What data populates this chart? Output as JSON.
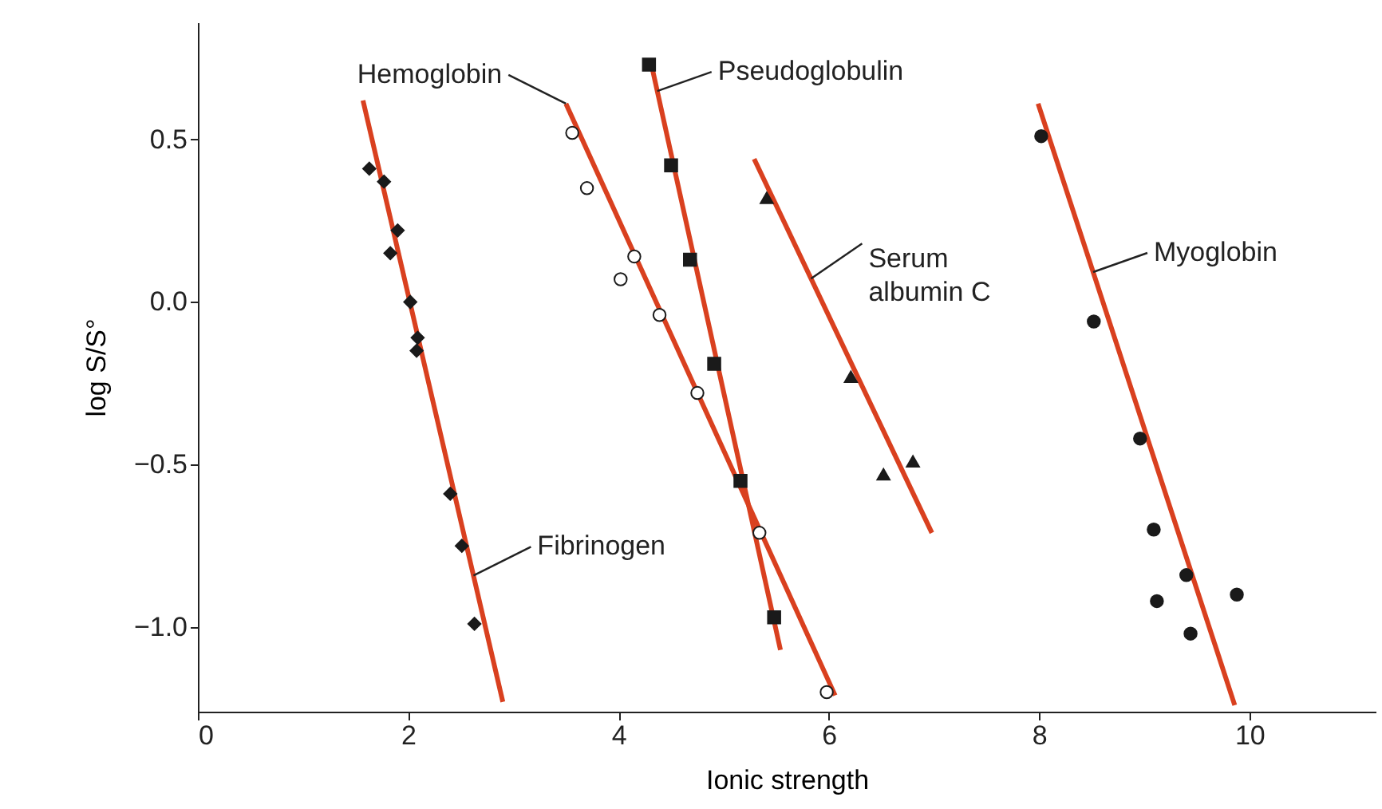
{
  "chart_data": {
    "type": "scatter",
    "xlabel": "Ionic strength",
    "ylabel": "log S/S°",
    "xlim": [
      0,
      11.2
    ],
    "ylim": [
      -1.26,
      0.86
    ],
    "xticks": [
      0,
      2,
      4,
      6,
      8,
      10
    ],
    "yticks": [
      {
        "value": 0.5,
        "label": "0.5"
      },
      {
        "value": 0.0,
        "label": "0.0"
      },
      {
        "value": -0.5,
        "label": "−0.5"
      },
      {
        "value": -1.0,
        "label": "−1.0"
      }
    ],
    "grid": false,
    "series": [
      {
        "marker": "diamond",
        "color": "#1a1a1a",
        "x": [
          1.63,
          1.77,
          1.9,
          1.83,
          2.02,
          2.09,
          2.08,
          2.4,
          2.51,
          2.63
        ],
        "values": [
          0.41,
          0.37,
          0.22,
          0.15,
          0.0,
          -0.11,
          -0.15,
          -0.59,
          -0.75,
          -0.99
        ]
      },
      {
        "type": "line",
        "name": "Fibrinogen",
        "color": "#d9401f",
        "x": [
          1.57,
          2.9
        ],
        "values": [
          0.62,
          -1.23
        ]
      },
      {
        "marker": "circle",
        "color": "#ffffff",
        "x": [
          3.56,
          3.7,
          4.15,
          4.02,
          4.39,
          4.75,
          5.34,
          5.98
        ],
        "values": [
          0.52,
          0.35,
          0.14,
          0.07,
          -0.04,
          -0.28,
          -0.71,
          -1.2
        ]
      },
      {
        "type": "line",
        "name": "Hemoglobin",
        "color": "#d9401f",
        "x": [
          3.5,
          6.06
        ],
        "values": [
          0.61,
          -1.21
        ]
      },
      {
        "marker": "square",
        "color": "#1a1a1a",
        "x": [
          4.29,
          4.5,
          4.68,
          4.91,
          5.16,
          5.48
        ],
        "values": [
          0.73,
          0.42,
          0.13,
          -0.19,
          -0.55,
          -0.97
        ]
      },
      {
        "type": "line",
        "name": "Pseudoglobulin",
        "color": "#d9401f",
        "x": [
          4.32,
          5.54
        ],
        "values": [
          0.72,
          -1.07
        ]
      },
      {
        "marker": "triangle",
        "color": "#1a1a1a",
        "x": [
          5.41,
          6.21,
          6.52,
          6.8
        ],
        "values": [
          0.32,
          -0.23,
          -0.53,
          -0.49
        ]
      },
      {
        "type": "line",
        "name": "Serum\nalbumin C",
        "color": "#d9401f",
        "x": [
          5.29,
          6.98
        ],
        "values": [
          0.44,
          -0.71
        ]
      },
      {
        "marker": "circle",
        "color": "#1a1a1a",
        "x": [
          8.02,
          8.52,
          8.96,
          9.09,
          9.4,
          9.12,
          9.88,
          9.44
        ],
        "values": [
          0.51,
          -0.06,
          -0.42,
          -0.7,
          -0.84,
          -0.92,
          -0.9,
          -1.02
        ]
      },
      {
        "type": "line",
        "name": "Myoglobin",
        "color": "#d9401f",
        "x": [
          7.99,
          9.86
        ],
        "values": [
          0.61,
          -1.24
        ]
      }
    ]
  }
}
